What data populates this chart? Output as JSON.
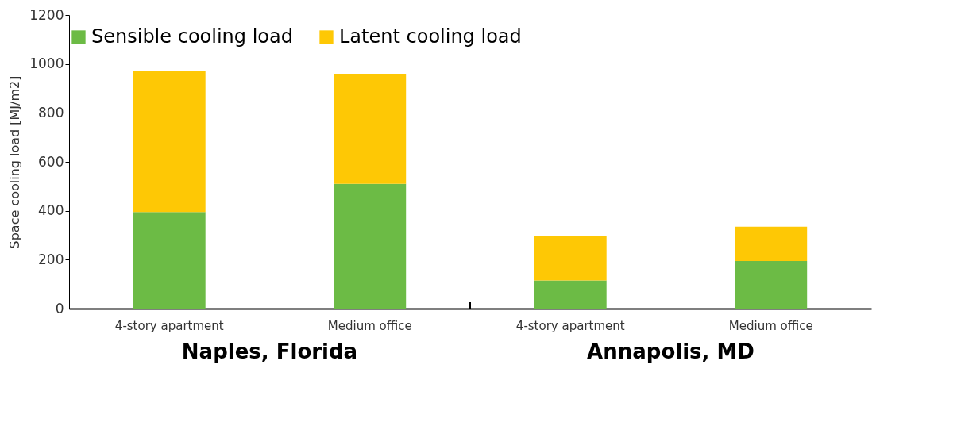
{
  "chart_data": {
    "type": "bar",
    "stacked": true,
    "categories": [
      "4-story apartment",
      "Medium office",
      "4-story apartment",
      "Medium office"
    ],
    "ylabel": "Space cooling load [MJ/m2]",
    "ylim": [
      0,
      1200
    ],
    "yticks": [
      0,
      200,
      400,
      600,
      800,
      1000,
      1200
    ],
    "series": [
      {
        "name": "Sensible cooling load",
        "color": "#6cbb45",
        "values": [
          395,
          510,
          115,
          195
        ]
      },
      {
        "name": "Latent cooling load",
        "color": "#fec805",
        "values": [
          575,
          450,
          180,
          140
        ]
      }
    ],
    "annotations": [
      "Naples, Florida",
      "Annapolis, MD"
    ],
    "legend": "top",
    "grid": false
  }
}
